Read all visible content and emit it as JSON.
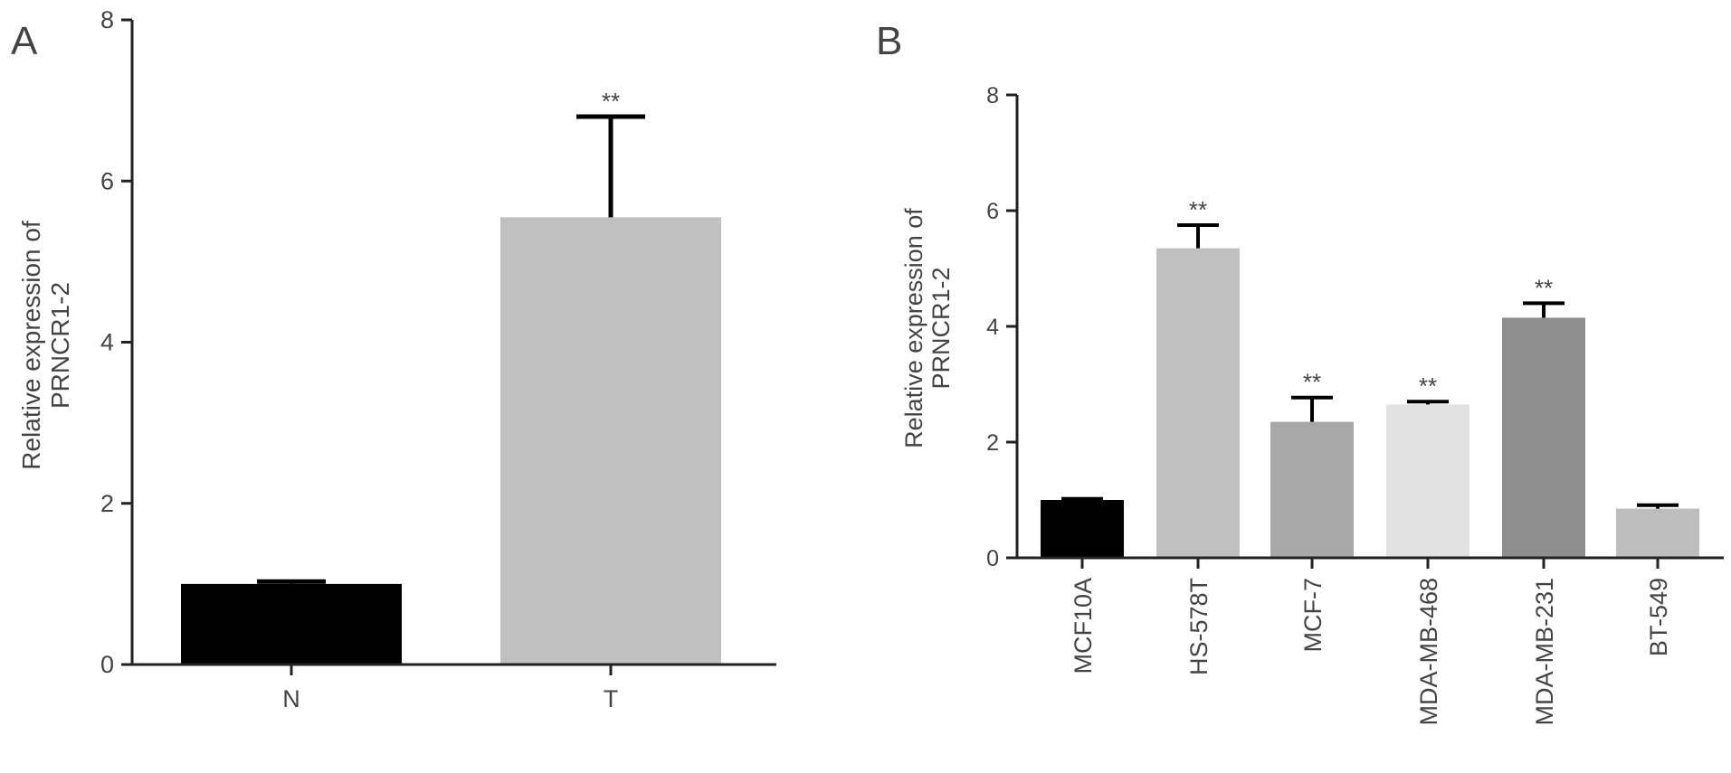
{
  "chart_data": [
    {
      "panel_label": "A",
      "type": "bar",
      "categories": [
        "N",
        "T"
      ],
      "values": [
        1.0,
        5.55
      ],
      "error": [
        0.03,
        1.25
      ],
      "significance": [
        "",
        "**"
      ],
      "colors": [
        "#000000",
        "#c0c0c0"
      ],
      "ylabel": [
        "Relative expression of",
        "PRNCR1-2"
      ],
      "ylim": [
        0,
        8
      ],
      "yticks": [
        0,
        2,
        4,
        6,
        8
      ],
      "grid": false,
      "legend": "none"
    },
    {
      "panel_label": "B",
      "type": "bar",
      "categories": [
        "MCF10A",
        "HS-578T",
        "MCF-7",
        "MDA-MB-468",
        "MDA-MB-231",
        "BT-549"
      ],
      "values": [
        1.0,
        5.35,
        2.35,
        2.65,
        4.15,
        0.85
      ],
      "error": [
        0.02,
        0.4,
        0.42,
        0.05,
        0.25,
        0.06
      ],
      "significance": [
        "",
        "**",
        "**",
        "**",
        "**",
        ""
      ],
      "colors": [
        "#000000",
        "#c0c0c0",
        "#a8a8a8",
        "#e2e2e2",
        "#8f8f8f",
        "#bdbdbd"
      ],
      "ylabel": [
        "Relative expression of",
        "PRNCR1-2"
      ],
      "ylim": [
        0,
        8
      ],
      "yticks": [
        0,
        2,
        4,
        6,
        8
      ],
      "grid": false,
      "legend": "none"
    }
  ]
}
